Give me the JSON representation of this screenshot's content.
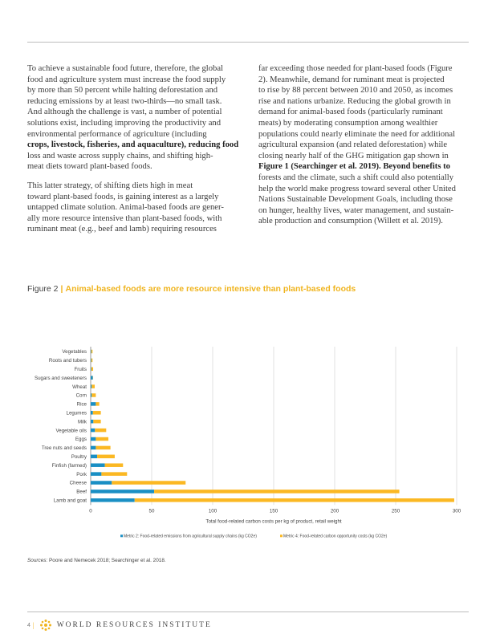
{
  "body": {
    "column1": [
      {
        "text": "To achieve a sustainable food future, therefore, the global",
        "bold": false
      },
      {
        "text": "food and agriculture system must increase the food supply",
        "bold": false
      },
      {
        "text": "by more than 50 percent while halting deforestation and",
        "bold": false
      },
      {
        "text": "reducing emissions by at least two-thirds—no small task.",
        "bold": false
      },
      {
        "text": "And although the challenge is vast, a number of potential",
        "bold": false
      },
      {
        "text": "solutions exist, including improving the productivity and",
        "bold": false
      },
      {
        "text": "environmental performance of agriculture (including",
        "bold": false
      },
      {
        "text": "crops, livestock, fisheries, and aquaculture), reducing food",
        "bold": true
      },
      {
        "text": "loss and waste across supply chains, and shifting high-",
        "bold": false
      },
      {
        "text": "meat diets toward plant-based foods.",
        "bold": false
      },
      {
        "gap": true
      },
      {
        "text": "This latter strategy, of shifting diets high in meat",
        "bold": false
      },
      {
        "text": "toward plant-based foods, is gaining interest as a largely",
        "bold": false
      },
      {
        "text": "untapped climate solution. Animal-based foods are gener-",
        "bold": false
      },
      {
        "text": "ally more resource intensive than plant-based foods, with",
        "bold": false
      },
      {
        "text": "ruminant meat (e.g., beef and lamb) requiring resources",
        "bold": false
      }
    ],
    "column2": [
      {
        "text": "far exceeding those needed for plant-based foods (Figure",
        "bold": false
      },
      {
        "text": "2). Meanwhile, demand for ruminant meat is projected",
        "bold": false
      },
      {
        "text": "to rise by 88 percent between 2010 and 2050, as incomes",
        "bold": false
      },
      {
        "text": "rise and nations urbanize. Reducing the global growth in",
        "bold": false
      },
      {
        "text": "demand for animal-based foods (particularly ruminant",
        "bold": false
      },
      {
        "text": "meats) by moderating consumption among wealthier",
        "bold": false
      },
      {
        "text": "populations could nearly eliminate the need for additional",
        "bold": false
      },
      {
        "text": "agricultural expansion (and related deforestation) while",
        "bold": false
      },
      {
        "text": "closing nearly half of the GHG mitigation gap shown in",
        "bold": false
      },
      {
        "text": "Figure 1 (Searchinger et al. 2019). Beyond benefits to",
        "bold": true
      },
      {
        "text": "forests and the climate, such a shift could also potentially",
        "bold": false
      },
      {
        "text": "help the world make progress toward several other United",
        "bold": false
      },
      {
        "text": "Nations Sustainable Development Goals, including those",
        "bold": false
      },
      {
        "text": "on hunger, healthy lives, water management, and sustain-",
        "bold": false
      },
      {
        "text": "able production and consumption (Willett et al. 2019).",
        "bold": false
      }
    ]
  },
  "figure": {
    "label": "Figure 2",
    "separator": "|",
    "title": "Animal-based foods are more resource intensive than plant-based foods"
  },
  "chart_data": {
    "type": "bar",
    "orientation": "horizontal",
    "stacked": true,
    "categories": [
      "Vegetables",
      "Roots and tubers",
      "Fruits",
      "Sugars and sweeteners",
      "Wheat",
      "Corn",
      "Rice",
      "Legumes",
      "Milk",
      "Vegetable oils",
      "Eggs",
      "Tree nuts and seeds",
      "Poultry",
      "Finfish (farmed)",
      "Pork",
      "Cheese",
      "Beef",
      "Lamb and goat"
    ],
    "series": [
      {
        "name": "Metric 2: Food-related emissions from agricultural supply chains (kg CO2e)",
        "color": "#1a8fc4",
        "values": [
          0.5,
          0.5,
          0.5,
          1.8,
          0.8,
          0.8,
          4.2,
          1.8,
          2.2,
          3.5,
          4.2,
          4.2,
          5.3,
          11.6,
          8.8,
          17.3,
          52,
          36
        ]
      },
      {
        "name": "Metric 4: Food-related carbon opportunity costs (kg CO2e)",
        "color": "#fbb823",
        "values": [
          1,
          1,
          1.5,
          0.2,
          2.5,
          3.4,
          2.8,
          6.5,
          6.1,
          9.2,
          10.3,
          12,
          14.4,
          14.9,
          21,
          60.5,
          201,
          262
        ]
      }
    ],
    "xlabel": "Total food-related carbon costs per kg of product, retail weight",
    "xlim": [
      0,
      300
    ],
    "xticks": [
      0,
      50,
      100,
      150,
      200,
      250,
      300
    ],
    "grid": true,
    "legend_position": "bottom"
  },
  "sources": {
    "label": "Sources:",
    "text": " Poore and Nemecek 2018; Searchinger et al. 2018."
  },
  "footer": {
    "page": "4",
    "separator": "|",
    "org": "WORLD RESOURCES INSTITUTE"
  }
}
